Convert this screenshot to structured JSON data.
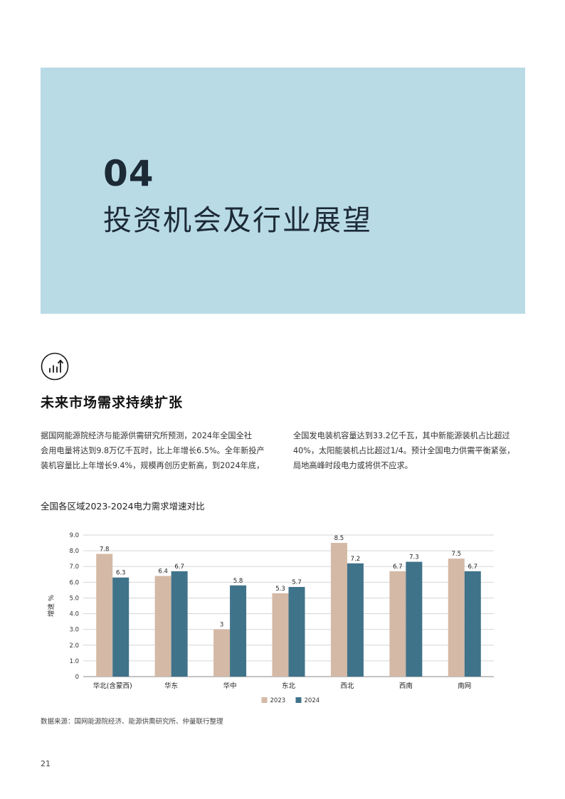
{
  "hero": {
    "number": "04",
    "title": "投资机会及行业展望",
    "background": "#b9dbe5"
  },
  "section": {
    "icon": "bar-chart-arrow-icon",
    "title": "未来市场需求持续扩张"
  },
  "paragraph_left": [
    "据国网能源院经济与能源供需研究所预测，2024年全国全社",
    "会用电量将达到9.8万亿千瓦时，比上年增长6.5%。全年新投产",
    "装机容量比上年增长9.4%，规模再创历史新高，到2024年底，"
  ],
  "paragraph_right": [
    "全国发电装机容量达到33.2亿千瓦，其中新能源装机占比超过",
    "40%，太阳能装机占比超过1/4。预计全国电力供需平衡紧张，",
    "局地高峰时段电力或将供不应求。"
  ],
  "chart_data": {
    "type": "bar",
    "title": "全国各区域2023-2024电力需求增速对比",
    "ylabel": "增速 %",
    "xlabel": "",
    "ylim": [
      0,
      9
    ],
    "yticks": [
      "0",
      "1.0",
      "2.0",
      "3.0",
      "4.0",
      "5.0",
      "6.0",
      "7.0",
      "8.0",
      "9.0"
    ],
    "categories": [
      "华北(含蒙西)",
      "华东",
      "华中",
      "东北",
      "西北",
      "西南",
      "南网"
    ],
    "series": [
      {
        "name": "2023",
        "color": "#d4b9a6",
        "values": [
          7.8,
          6.4,
          3,
          5.3,
          8.5,
          6.7,
          7.5
        ],
        "labels": [
          "7.8",
          "6.4",
          "3",
          "5.3",
          "8.5",
          "6.7",
          "7.5"
        ]
      },
      {
        "name": "2024",
        "color": "#3f738a",
        "values": [
          6.3,
          6.7,
          5.8,
          5.7,
          7.2,
          7.3,
          6.7
        ],
        "labels": [
          "6.3",
          "6.7",
          "5.8",
          "5.7",
          "7.2",
          "7.3",
          "6.7"
        ]
      }
    ],
    "grid": true,
    "legend": "bottom-center"
  },
  "source": "数据来源：国网能源院经济、能源供需研究所、仲量联行整理",
  "page_number": "21"
}
